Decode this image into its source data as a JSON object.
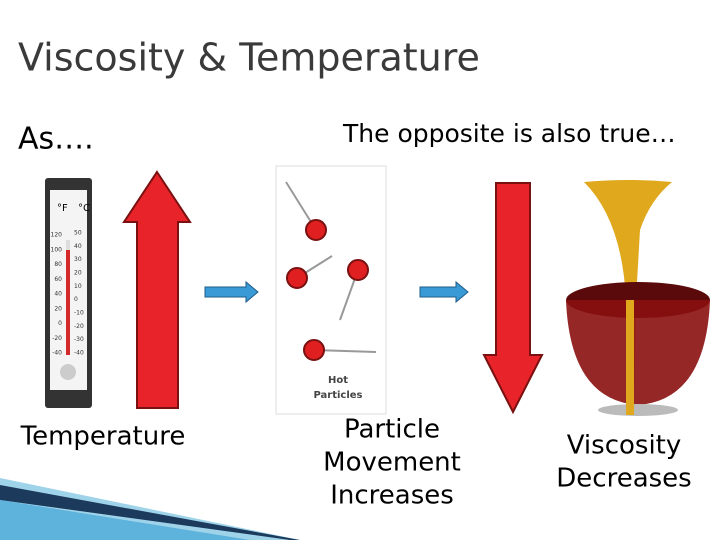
{
  "header": {
    "title": "Viscosity & Temperature"
  },
  "left": {
    "lead": "As….",
    "label": "Temperature"
  },
  "right": {
    "lead": "The opposite is also true…",
    "label_lines": [
      "Viscosity",
      "Decreases"
    ]
  },
  "middle": {
    "label_lines": [
      "Particle",
      "Movement",
      "Increases"
    ],
    "caption_lines": [
      "Hot",
      "Particles"
    ]
  },
  "thermometer": {
    "units": [
      "°F",
      "°C"
    ],
    "fahrenheit": [
      "120",
      "100",
      "80",
      "60",
      "40",
      "20",
      "0",
      "-20",
      "-40"
    ],
    "celsius": [
      "50",
      "40",
      "30",
      "20",
      "10",
      "0",
      "-10",
      "-20",
      "-30",
      "-40"
    ]
  }
}
